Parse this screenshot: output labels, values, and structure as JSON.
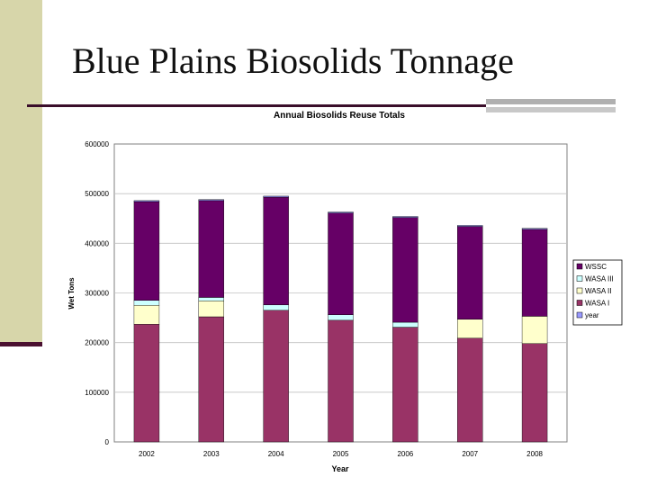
{
  "slide": {
    "title": "Blue Plains Biosolids Tonnage"
  },
  "chart_data": {
    "type": "bar",
    "stacked": true,
    "title": "Annual Biosolids Reuse Totals",
    "xlabel": "Year",
    "ylabel": "Wet Tons",
    "ylim": [
      0,
      600000
    ],
    "yticks": [
      0,
      100000,
      200000,
      300000,
      400000,
      500000,
      600000
    ],
    "ytick_labels": [
      "0",
      "100000",
      "200000",
      "300000",
      "400000",
      "500000",
      "600000"
    ],
    "grid": true,
    "legend_position": "right",
    "categories": [
      "2002",
      "2003",
      "2004",
      "2005",
      "2006",
      "2007",
      "2008"
    ],
    "series": [
      {
        "name": "WASA I",
        "color": "#993366",
        "values": [
          237000,
          252000,
          265000,
          245000,
          231000,
          209000,
          198000
        ]
      },
      {
        "name": "WASA II",
        "color": "#ffffcc",
        "values": [
          38000,
          32000,
          0,
          0,
          0,
          38000,
          55000
        ]
      },
      {
        "name": "WASA III",
        "color": "#ccffff",
        "values": [
          10000,
          7000,
          11000,
          11000,
          10000,
          0,
          0
        ]
      },
      {
        "name": "WSSC",
        "color": "#660066",
        "values": [
          199000,
          195000,
          217000,
          205000,
          211000,
          187000,
          175000
        ]
      },
      {
        "name": "year",
        "color": "#9999ff",
        "values": [
          2002,
          2003,
          2004,
          2005,
          2006,
          2007,
          2008
        ]
      }
    ],
    "legend_order": [
      "WSSC",
      "WASA III",
      "WASA II",
      "WASA I",
      "year"
    ]
  }
}
